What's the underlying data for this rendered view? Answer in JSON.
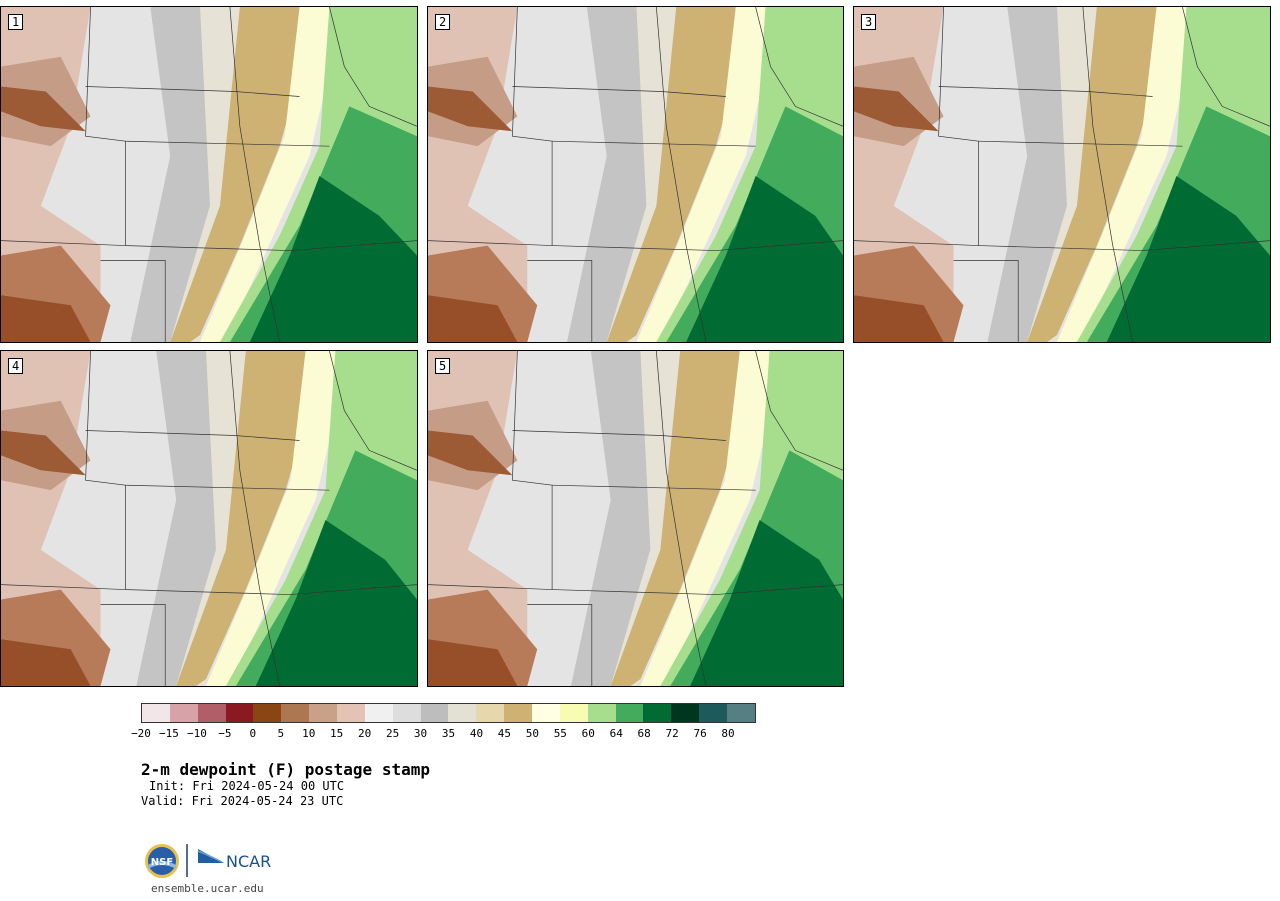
{
  "panels": [
    {
      "label": "1"
    },
    {
      "label": "2"
    },
    {
      "label": "3"
    },
    {
      "label": "4"
    },
    {
      "label": "5"
    }
  ],
  "colorbar": {
    "colors": [
      "#f3e6e8",
      "#d7a2a8",
      "#b05e68",
      "#8a1a22",
      "#8a4514",
      "#ad7752",
      "#c9a088",
      "#e3c4b4",
      "#f0f0f0",
      "#dddddd",
      "#bdbdbd",
      "#e3e1d3",
      "#e6d7ad",
      "#cdb274",
      "#ffffe4",
      "#f8fbb2",
      "#a6de8e",
      "#43ab5c",
      "#006c34",
      "#00361f",
      "#1c5a5c",
      "#567f84"
    ],
    "ticks": [
      "−20",
      "−15",
      "−10",
      "−5",
      "0",
      "5",
      "10",
      "15",
      "20",
      "25",
      "30",
      "35",
      "40",
      "45",
      "50",
      "55",
      "60",
      "64",
      "68",
      "72",
      "76",
      "80"
    ]
  },
  "title": "2-m dewpoint (F) postage stamp",
  "init": "Init: Fri 2024-05-24 00 UTC",
  "valid": "Valid: Fri 2024-05-24 23 UTC",
  "logos": {
    "nsf": "NSF",
    "ncar": "NCAR"
  },
  "url": "ensemble.ucar.edu"
}
